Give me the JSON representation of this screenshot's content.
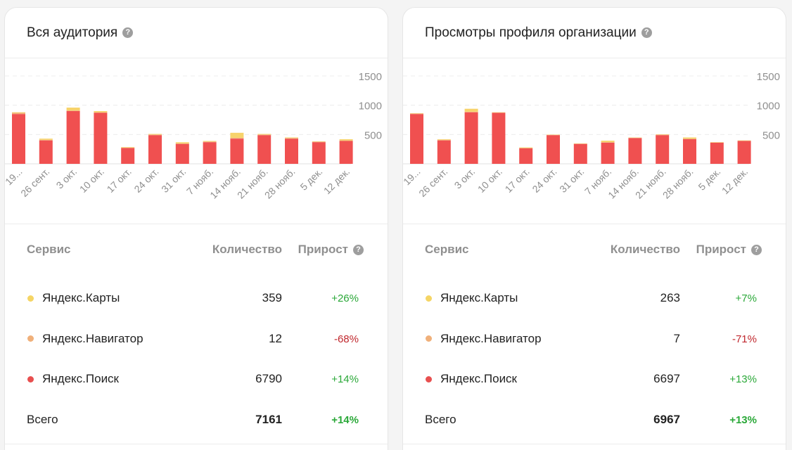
{
  "cards": [
    {
      "title": "Вся аудитория",
      "table": {
        "headers": {
          "service": "Сервис",
          "count": "Количество",
          "growth": "Прирост"
        },
        "rows": [
          {
            "service": "Яндекс.Карты",
            "count": "359",
            "growth": "+26%",
            "dot_color": "#f5d565",
            "trend": "pos"
          },
          {
            "service": "Яндекс.Навигатор",
            "count": "12",
            "growth": "-68%",
            "dot_color": "#f0b07a",
            "trend": "neg"
          },
          {
            "service": "Яндекс.Поиск",
            "count": "6790",
            "growth": "+14%",
            "dot_color": "#e84f4f",
            "trend": "pos"
          }
        ],
        "total": {
          "label": "Всего",
          "count": "7161",
          "growth": "+14%"
        }
      },
      "chart_data": {
        "type": "bar",
        "stacked": true,
        "categories": [
          "19...",
          "26 сент.",
          "3 окт.",
          "10 окт.",
          "17 окт.",
          "24 окт.",
          "31 окт.",
          "7 нояб.",
          "14 нояб.",
          "21 нояб.",
          "28 нояб.",
          "5 дек.",
          "12 дек."
        ],
        "series": [
          {
            "values": [
              850,
              400,
              900,
              870,
              270,
              490,
              340,
              370,
              430,
              490,
              430,
              370,
              390
            ],
            "color": "#f05050"
          },
          {
            "values": [
              20,
              10,
              10,
              10,
              5,
              10,
              8,
              10,
              15,
              10,
              10,
              8,
              10
            ],
            "color": "#f0b07a"
          },
          {
            "values": [
              10,
              20,
              50,
              20,
              10,
              10,
              20,
              10,
              85,
              10,
              10,
              5,
              20
            ],
            "color": "#f7d36b"
          }
        ],
        "yticks": [
          "500",
          "1000",
          "1500"
        ],
        "ylim": [
          0,
          1700
        ],
        "grid": true
      }
    },
    {
      "title": "Просмотры профиля организации",
      "table": {
        "headers": {
          "service": "Сервис",
          "count": "Количество",
          "growth": "Прирост"
        },
        "rows": [
          {
            "service": "Яндекс.Карты",
            "count": "263",
            "growth": "+7%",
            "dot_color": "#f5d565",
            "trend": "pos"
          },
          {
            "service": "Яндекс.Навигатор",
            "count": "7",
            "growth": "-71%",
            "dot_color": "#f0b07a",
            "trend": "neg"
          },
          {
            "service": "Яндекс.Поиск",
            "count": "6697",
            "growth": "+13%",
            "dot_color": "#e84f4f",
            "trend": "pos"
          }
        ],
        "total": {
          "label": "Всего",
          "count": "6967",
          "growth": "+13%"
        }
      },
      "chart_data": {
        "type": "bar",
        "stacked": true,
        "categories": [
          "19...",
          "26 сент.",
          "3 окт.",
          "10 окт.",
          "17 окт.",
          "24 окт.",
          "31 окт.",
          "7 нояб.",
          "14 нояб.",
          "21 нояб.",
          "28 нояб.",
          "5 дек.",
          "12 дек."
        ],
        "series": [
          {
            "values": [
              850,
              400,
              880,
              870,
              265,
              490,
              340,
              360,
              440,
              490,
              420,
              360,
              390
            ],
            "color": "#f05050"
          },
          {
            "values": [
              10,
              10,
              10,
              5,
              5,
              5,
              5,
              10,
              5,
              10,
              10,
              5,
              5
            ],
            "color": "#f0b07a"
          },
          {
            "values": [
              5,
              10,
              50,
              5,
              10,
              5,
              5,
              25,
              5,
              5,
              20,
              5,
              5
            ],
            "color": "#f7d36b"
          }
        ],
        "yticks": [
          "500",
          "1000",
          "1500"
        ],
        "ylim": [
          0,
          1700
        ],
        "grid": true
      }
    }
  ]
}
